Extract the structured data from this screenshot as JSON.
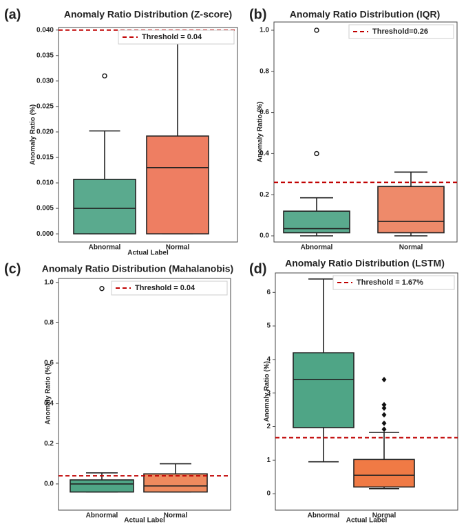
{
  "chart_data": [
    {
      "type": "box",
      "panel_label": "(a)",
      "title": "Anomaly Ratio Distribution (Z-score)",
      "x_label": "Actual Label",
      "y_label": "Anomaly Ratio (%)",
      "categories": [
        "Abnormal",
        "Normal"
      ],
      "colors": [
        "#5aaa8e",
        "#ee7e62"
      ],
      "boxes": [
        {
          "min": 0,
          "q1": 0,
          "median": 0.005,
          "q3": 0.0107,
          "max": 0.0202,
          "outliers": [
            0.031
          ]
        },
        {
          "min": 0,
          "q1": 0,
          "median": 0.013,
          "q3": 0.0192,
          "max": 0.0377,
          "outliers": []
        }
      ],
      "outlier_marker": "circle",
      "threshold": {
        "value": 0.04,
        "label": "Threshold = 0.04",
        "color": "#c00000"
      },
      "legend_loc": "upper right",
      "ylim": [
        -0.0016,
        0.0405
      ],
      "yticks": [
        {
          "value": 0,
          "label": "0.000"
        },
        {
          "value": 0.005,
          "label": "0.005"
        },
        {
          "value": 0.01,
          "label": "0.010"
        },
        {
          "value": 0.015,
          "label": "0.015"
        },
        {
          "value": 0.02,
          "label": "0.020"
        },
        {
          "value": 0.025,
          "label": "0.025"
        },
        {
          "value": 0.03,
          "label": "0.030"
        },
        {
          "value": 0.035,
          "label": "0.035"
        },
        {
          "value": 0.04,
          "label": "0.040"
        }
      ]
    },
    {
      "type": "box",
      "panel_label": "(b)",
      "title": "Anomaly Ratio Distribution (IQR)",
      "y_label": "Anomaly Ratio (%)",
      "categories": [
        "Abnormal",
        "Normal"
      ],
      "colors": [
        "#5aaa8e",
        "#ee8a6a"
      ],
      "boxes": [
        {
          "min": 0,
          "q1": 0.015,
          "median": 0.035,
          "q3": 0.12,
          "max": 0.185,
          "outliers": [
            0.4,
            1.0
          ]
        },
        {
          "min": 0,
          "q1": 0.015,
          "median": 0.07,
          "q3": 0.24,
          "max": 0.31,
          "outliers": []
        }
      ],
      "outlier_marker": "circle",
      "threshold": {
        "value": 0.26,
        "label": "Threshold=0.26",
        "color": "#c00000"
      },
      "legend_loc": "upper right",
      "ylim": [
        -0.03,
        1.04
      ],
      "yticks": [
        {
          "value": 0,
          "label": "0.0"
        },
        0.2,
        0.4,
        0.6,
        0.8,
        {
          "value": 1,
          "label": "1.0"
        }
      ]
    },
    {
      "type": "box",
      "panel_label": "(c)",
      "title": "Anomaly Ratio Distribution (Mahalanobis)",
      "x_label": "Actual Label",
      "y_label": "Anomaly Ratio (%)",
      "categories": [
        "Abnormal",
        "Normal"
      ],
      "colors": [
        "#4fa586",
        "#ee8a5e"
      ],
      "boxes": [
        {
          "min": -0.04,
          "q1": -0.04,
          "median": 0,
          "q3": 0.02,
          "max": 0.055,
          "outliers": [
            0.97
          ]
        },
        {
          "min": -0.04,
          "q1": -0.04,
          "median": -0.01,
          "q3": 0.05,
          "max": 0.1,
          "outliers": []
        }
      ],
      "outlier_marker": "circle",
      "threshold": {
        "value": 0.04,
        "label": "Threshold = 0.04",
        "color": "#c00000"
      },
      "legend_loc": "upper right",
      "ylim": [
        -0.13,
        1.02
      ],
      "yticks": [
        {
          "value": 0,
          "label": "0.0"
        },
        0.2,
        0.4,
        0.6,
        0.8,
        {
          "value": 1,
          "label": "1.0"
        }
      ]
    },
    {
      "type": "box",
      "panel_label": "(d)",
      "title": "Anomaly Ratio Distribution (LSTM)",
      "x_label": "Actual Label",
      "y_label": "Anomaly Ratio (%)",
      "categories": [
        "Abnormal",
        "Normal"
      ],
      "colors": [
        "#4fa586",
        "#f07a45"
      ],
      "boxes": [
        {
          "min": 0.95,
          "q1": 1.97,
          "median": 3.4,
          "q3": 4.2,
          "max": 6.4,
          "outliers": []
        },
        {
          "min": 0.15,
          "q1": 0.2,
          "median": 0.55,
          "q3": 1.02,
          "max": 1.83,
          "outliers": [
            1.92,
            2.1,
            2.35,
            2.55,
            2.65,
            3.4
          ]
        }
      ],
      "outlier_marker": "diamond",
      "threshold": {
        "value": 1.67,
        "label": "Threshold = 1.67%",
        "color": "#c00000"
      },
      "legend_loc": "upper right",
      "ylim": [
        -0.49,
        6.58
      ],
      "yticks": [
        0,
        1,
        2,
        3,
        4,
        5,
        6
      ]
    }
  ]
}
